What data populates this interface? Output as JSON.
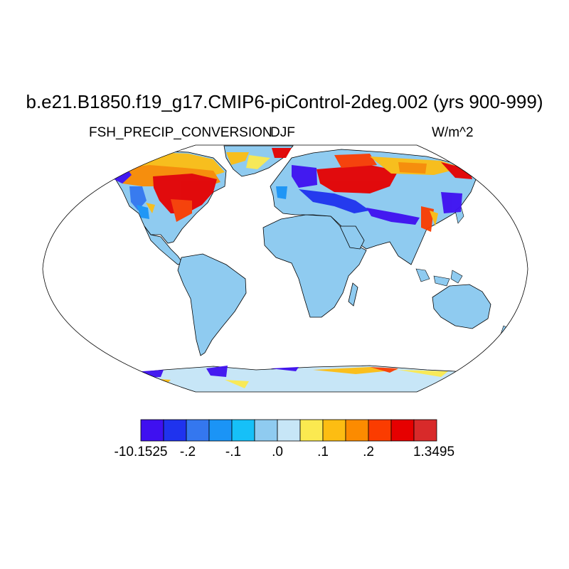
{
  "title": "b.e21.B1850.f19_g17.CMIP6-piControl-2deg.002 (yrs 900-999)",
  "variable": "FSH_PRECIP_CONVERSION",
  "season": "DJF",
  "units": "W/m^2",
  "colorbar": {
    "colors": [
      "#3f10f0",
      "#1f33ee",
      "#3477ef",
      "#1b94f6",
      "#16c0f8",
      "#8fcbf0",
      "#c7e6f7",
      "#fbe950",
      "#fdbd12",
      "#fc8b00",
      "#fb3c00",
      "#e60000",
      "#d82a2a"
    ],
    "labels": [
      "-10.1525",
      "-.2",
      "-.1",
      ".0",
      ".1",
      ".2",
      "1.3495"
    ]
  }
}
